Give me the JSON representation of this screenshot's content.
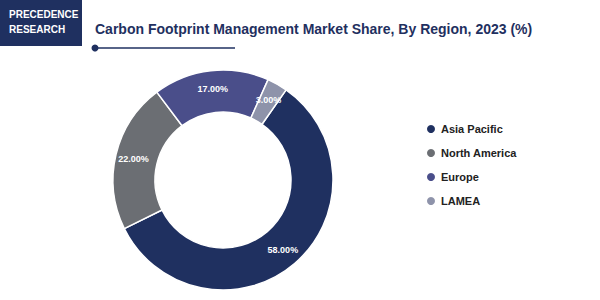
{
  "logo": [
    "PRECEDENCE",
    "RESEARCH"
  ],
  "chart_data": {
    "type": "donut",
    "title": "Carbon Footprint Management Market Share, By Region, 2023 (%)",
    "categories": [
      "Asia Pacific",
      "North America",
      "Europe",
      "LAMEA"
    ],
    "values": [
      58,
      22,
      17,
      3
    ],
    "value_labels": [
      "58.00%",
      "22.00%",
      "17.00%",
      "3.00%"
    ],
    "colors": [
      "#1f3060",
      "#6b6e73",
      "#4a4e8a",
      "#8e93aa"
    ],
    "data_labels": true,
    "legend": "right"
  }
}
